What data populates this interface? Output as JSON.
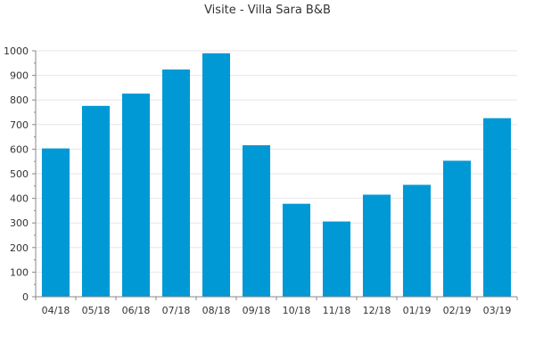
{
  "colors": {
    "bar": "#0099d6",
    "grid": "#e6e6e6",
    "axis": "#888888",
    "text": "#333333"
  },
  "chart_data": {
    "type": "bar",
    "title": "Visite - Villa Sara B&B",
    "xlabel": "",
    "ylabel": "",
    "categories": [
      "04/18",
      "05/18",
      "06/18",
      "07/18",
      "08/18",
      "09/18",
      "10/18",
      "11/18",
      "12/18",
      "01/19",
      "02/19",
      "03/19"
    ],
    "values": [
      603,
      776,
      826,
      924,
      990,
      616,
      378,
      306,
      415,
      455,
      553,
      726
    ],
    "ylim": [
      0,
      1000
    ],
    "yticks": [
      0,
      100,
      200,
      300,
      400,
      500,
      600,
      700,
      800,
      900,
      1000
    ],
    "grid": true,
    "legend": "none"
  }
}
